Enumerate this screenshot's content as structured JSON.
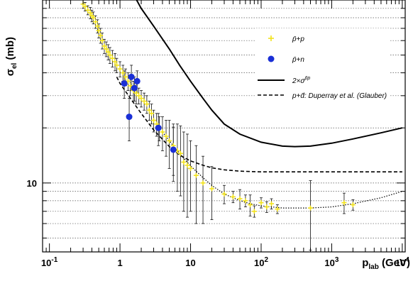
{
  "chart_data": {
    "type": "scatter",
    "title": "",
    "y_axis": {
      "label": "σ",
      "label_sub": "el",
      "label_unit": " (mb)",
      "scale": "log",
      "range": [
        4.2,
        100
      ],
      "tick_labels": [
        {
          "value": 10,
          "text": "10"
        }
      ]
    },
    "x_axis": {
      "label": "p",
      "label_sub": "lab",
      "label_unit": " (GeV)",
      "scale": "log",
      "range": [
        0.08,
        11000
      ],
      "tick_labels": [
        {
          "value": 0.1,
          "base": "10",
          "exp": "-1"
        },
        {
          "value": 1,
          "text": "1"
        },
        {
          "value": 10,
          "text": "10"
        },
        {
          "value": 100,
          "text": "10",
          "exp": "2"
        },
        {
          "value": 1000,
          "text": "10",
          "exp": "3"
        },
        {
          "value": 10000,
          "text": "10",
          "exp": "4"
        }
      ]
    },
    "grid": "horizontal dotted",
    "legend_placement": "right",
    "legend": [
      {
        "key": "pbar_p",
        "label": "p̄+p",
        "marker": "yellow-cross"
      },
      {
        "key": "pbar_n",
        "label": "p̄+n",
        "marker": "blue-dot"
      },
      {
        "key": "two_sigma",
        "label": "2×σ",
        "sup": "p̄p",
        "line": "solid"
      },
      {
        "key": "glauber",
        "label": "p+d̄: Duperray et al. (Glauber)",
        "line": "dashed"
      }
    ],
    "colors": {
      "pbar_p": "#f2e21a",
      "pbar_n": "#1a2fd6",
      "error_bars": "#111111",
      "axis": "#000000"
    },
    "series": [
      {
        "name": "p̄+p",
        "type": "scatter",
        "points": [
          [
            0.3,
            95,
            5
          ],
          [
            0.32,
            92,
            5
          ],
          [
            0.35,
            88,
            5
          ],
          [
            0.38,
            85,
            6
          ],
          [
            0.4,
            82,
            6
          ],
          [
            0.42,
            80,
            6
          ],
          [
            0.45,
            76,
            6
          ],
          [
            0.48,
            72,
            6
          ],
          [
            0.5,
            68,
            6
          ],
          [
            0.53,
            64,
            6
          ],
          [
            0.56,
            60,
            6
          ],
          [
            0.6,
            56,
            5
          ],
          [
            0.64,
            54,
            5
          ],
          [
            0.68,
            52,
            5
          ],
          [
            0.72,
            50,
            5
          ],
          [
            0.78,
            48,
            5
          ],
          [
            0.85,
            46,
            5
          ],
          [
            0.9,
            44,
            4
          ],
          [
            1.0,
            42,
            4
          ],
          [
            1.1,
            40,
            4
          ],
          [
            1.2,
            38,
            4
          ],
          [
            1.3,
            36,
            4
          ],
          [
            1.4,
            34,
            4
          ],
          [
            1.55,
            32,
            4
          ],
          [
            1.7,
            31,
            4
          ],
          [
            1.85,
            30,
            3
          ],
          [
            2.0,
            29,
            3
          ],
          [
            2.2,
            28,
            3
          ],
          [
            2.4,
            27,
            3
          ],
          [
            2.6,
            25,
            3
          ],
          [
            2.8,
            24,
            3
          ],
          [
            3.0,
            22,
            3
          ],
          [
            3.3,
            21,
            3
          ],
          [
            3.6,
            20,
            3
          ],
          [
            4.0,
            19,
            4
          ],
          [
            4.5,
            18,
            4
          ],
          [
            5.0,
            17,
            5
          ],
          [
            5.7,
            16,
            5
          ],
          [
            6.5,
            15,
            6
          ],
          [
            7.2,
            14.5,
            6
          ],
          [
            8.0,
            13,
            6
          ],
          [
            9.0,
            12.5,
            6
          ],
          [
            10.0,
            12.0,
            5
          ],
          [
            12.0,
            11.0,
            5
          ],
          [
            15.0,
            10.0,
            4
          ],
          [
            20.0,
            9.3,
            3
          ],
          [
            30.0,
            8.7,
            1.0
          ],
          [
            40.0,
            8.4,
            0.6
          ],
          [
            50.0,
            8.2,
            1.0
          ],
          [
            60.0,
            8.0,
            0.6
          ],
          [
            70.0,
            7.6,
            1.0
          ],
          [
            80.0,
            7.0,
            0.5
          ],
          [
            100.0,
            7.8,
            0.5
          ],
          [
            120.0,
            7.4,
            0.5
          ],
          [
            140.0,
            7.7,
            0.5
          ],
          [
            170.0,
            7.2,
            0.4
          ],
          [
            500.0,
            7.3,
            3.0
          ],
          [
            1500.0,
            7.8,
            1.0
          ],
          [
            2000.0,
            7.6,
            0.5
          ]
        ]
      },
      {
        "name": "p̄+n",
        "type": "scatter",
        "points": [
          [
            1.15,
            35,
            6
          ],
          [
            1.45,
            38,
            6
          ],
          [
            1.6,
            33,
            5
          ],
          [
            1.75,
            36,
            5
          ],
          [
            1.35,
            23,
            6
          ],
          [
            3.5,
            20,
            4
          ],
          [
            5.7,
            15.2,
            5
          ]
        ]
      },
      {
        "name": "2×σ p̄p",
        "type": "line",
        "points": [
          [
            1.5,
            110
          ],
          [
            2.0,
            90
          ],
          [
            3.0,
            72
          ],
          [
            5.0,
            54
          ],
          [
            7.0,
            44
          ],
          [
            10.0,
            36
          ],
          [
            15.0,
            29
          ],
          [
            20.0,
            25
          ],
          [
            30.0,
            21
          ],
          [
            50.0,
            18.5
          ],
          [
            100.0,
            16.7
          ],
          [
            200.0,
            15.9
          ],
          [
            300.0,
            15.8
          ],
          [
            500.0,
            15.9
          ],
          [
            1000.0,
            16.5
          ],
          [
            2000.0,
            17.4
          ],
          [
            5000.0,
            18.8
          ],
          [
            10000.0,
            20
          ]
        ]
      },
      {
        "name": "p+d̄: Duperray et al. (Glauber)",
        "type": "line",
        "points": [
          [
            0.9,
            38
          ],
          [
            1.0,
            35
          ],
          [
            1.5,
            28
          ],
          [
            2.0,
            24
          ],
          [
            3.0,
            19.5
          ],
          [
            5.0,
            15.8
          ],
          [
            7.0,
            14.2
          ],
          [
            10.0,
            13.2
          ],
          [
            15.0,
            12.5
          ],
          [
            20.0,
            12.1
          ],
          [
            30.0,
            11.8
          ],
          [
            50.0,
            11.6
          ],
          [
            100.0,
            11.5
          ],
          [
            200.0,
            11.5
          ],
          [
            500.0,
            11.5
          ],
          [
            1000.0,
            11.5
          ],
          [
            10000.0,
            11.5
          ]
        ]
      },
      {
        "name": "",
        "type": "line",
        "points": [
          [
            4.0,
            19.0
          ],
          [
            5.0,
            17.0
          ],
          [
            7.0,
            14.5
          ],
          [
            10.0,
            12.4
          ],
          [
            15.0,
            10.7
          ],
          [
            20.0,
            9.7
          ],
          [
            30.0,
            8.7
          ],
          [
            50.0,
            8.0
          ],
          [
            70.0,
            7.7
          ],
          [
            100.0,
            7.5
          ],
          [
            200.0,
            7.3
          ],
          [
            500.0,
            7.3
          ],
          [
            1000.0,
            7.4
          ],
          [
            2000.0,
            7.7
          ],
          [
            5000.0,
            8.3
          ],
          [
            10000.0,
            9.0
          ]
        ]
      }
    ]
  }
}
